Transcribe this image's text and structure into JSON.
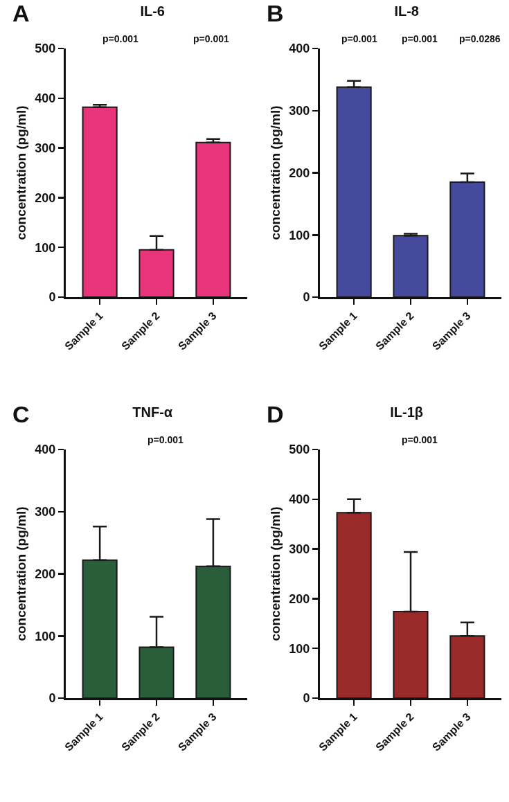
{
  "chart_data": [
    {
      "type": "bar",
      "title": "IL-6",
      "ylabel": "concentration (pg/ml)",
      "categories": [
        "Sample 1",
        "Sample 2",
        "Sample 3"
      ],
      "values": [
        382,
        95,
        311
      ],
      "errors": [
        [
          382,
          387
        ],
        [
          95,
          123
        ],
        [
          311,
          318
        ]
      ],
      "color": "#e8347a",
      "ylim": [
        0,
        500
      ],
      "yticks": [
        0,
        100,
        200,
        300,
        400,
        500
      ],
      "annotations": [
        "A",
        "p=0.001",
        "p=0.001"
      ]
    },
    {
      "type": "bar",
      "title": "IL-8",
      "ylabel": "concentration (pg/ml)",
      "categories": [
        "Sample 1",
        "Sample 2",
        "Sample 3"
      ],
      "values": [
        338,
        99,
        185
      ],
      "errors": [
        [
          338,
          348
        ],
        [
          99,
          102
        ],
        [
          185,
          199
        ]
      ],
      "color": "#464a9c",
      "ylim": [
        0,
        400
      ],
      "yticks": [
        0,
        100,
        200,
        300,
        400
      ],
      "annotations": [
        "B",
        "p=0.001",
        "p=0.001",
        "p=0.0286"
      ]
    },
    {
      "type": "bar",
      "title": "TNF-α",
      "ylabel": "concentration (pg/ml)",
      "categories": [
        "Sample 1",
        "Sample 2",
        "Sample 3"
      ],
      "values": [
        222,
        82,
        212
      ],
      "errors": [
        [
          222,
          276
        ],
        [
          82,
          131
        ],
        [
          212,
          288
        ]
      ],
      "color": "#2a5e3a",
      "ylim": [
        0,
        400
      ],
      "yticks": [
        0,
        100,
        200,
        300,
        400
      ],
      "annotations": [
        "C",
        "p=0.001"
      ]
    },
    {
      "type": "bar",
      "title": "IL-1β",
      "ylabel": "concentration (pg/ml)",
      "categories": [
        "Sample 1",
        "Sample 2",
        "Sample 3"
      ],
      "values": [
        373,
        174,
        125
      ],
      "errors": [
        [
          373,
          400
        ],
        [
          174,
          294
        ],
        [
          125,
          152
        ]
      ],
      "color": "#9a2a2a",
      "ylim": [
        0,
        500
      ],
      "yticks": [
        0,
        100,
        200,
        300,
        400,
        500
      ],
      "annotations": [
        "D",
        "p=0.001"
      ]
    }
  ]
}
